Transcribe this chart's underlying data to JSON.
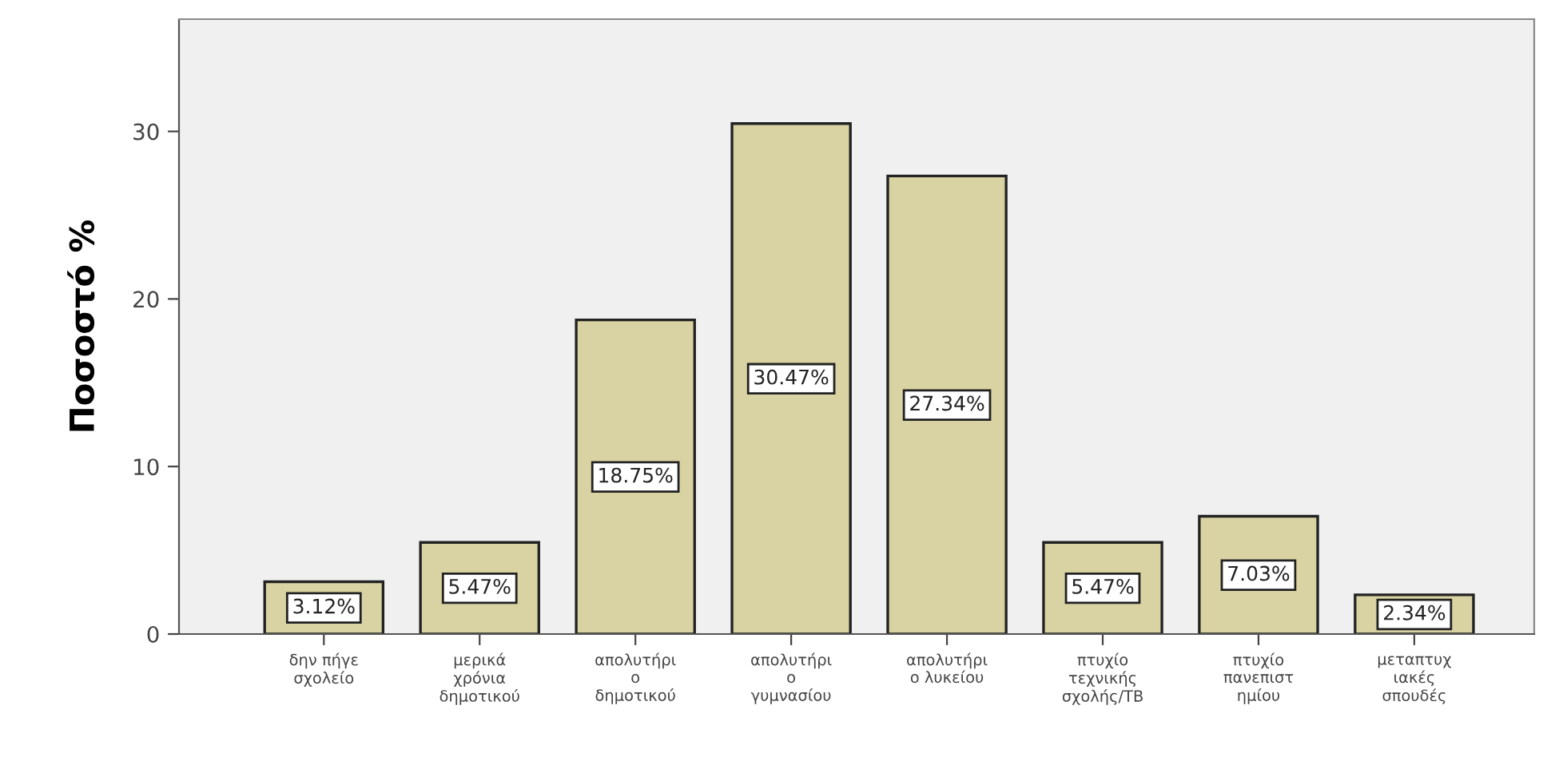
{
  "chart_data": {
    "type": "bar",
    "ylabel": "Ποσοστό %",
    "categories": [
      "δην πήγε\nσχολείο",
      "μερικά\nχρόνια\nδημοτικού",
      "απολυτήρι\nο\nδημοτικού",
      "απολυτήρι\nο\nγυμνασίου",
      "απολυτήρι\nο λυκείου",
      "πτυχίο\nτεχνικής\nσχολής/ΤΒ",
      "πτυχίο\nπανεπιστ\nημίου",
      "μεταπτυχ\nιακές\nσπουδές"
    ],
    "values": [
      3.12,
      5.47,
      18.75,
      30.47,
      27.34,
      5.47,
      7.03,
      2.34
    ],
    "value_labels": [
      "3.12%",
      "5.47%",
      "18.75%",
      "30.47%",
      "27.34%",
      "5.47%",
      "7.03%",
      "2.34%"
    ],
    "color": "#d9d3a3",
    "ylim": [
      0,
      36.7
    ],
    "yticks": [
      0,
      10,
      20,
      30
    ],
    "grid": false
  }
}
